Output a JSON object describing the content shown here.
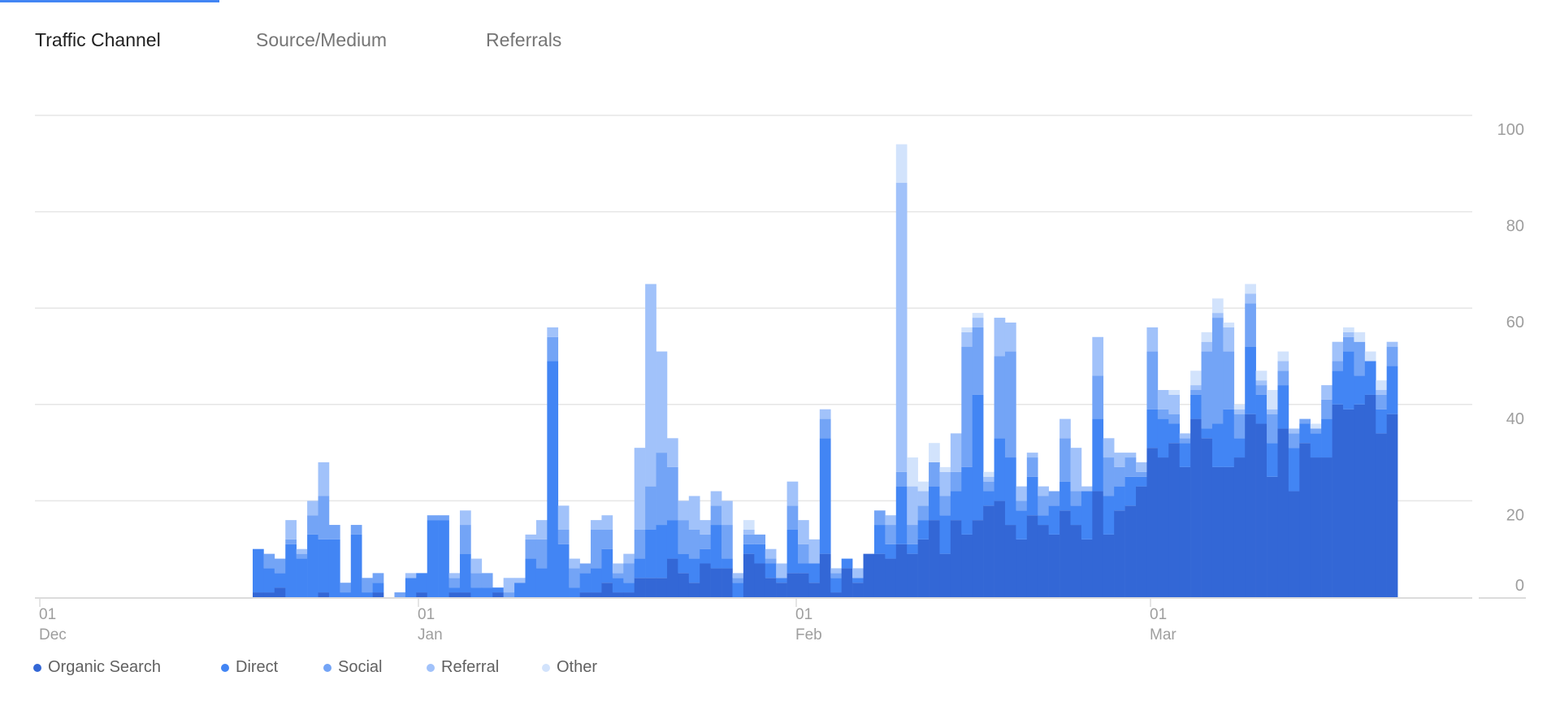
{
  "tabs": [
    {
      "label": "Traffic Channel",
      "active": true
    },
    {
      "label": "Source/Medium",
      "active": false
    },
    {
      "label": "Referrals",
      "active": false
    }
  ],
  "chart_data": {
    "type": "bar",
    "stacked": true,
    "title": "",
    "xlabel": "",
    "ylabel": "",
    "ylim": [
      0,
      100
    ],
    "yticks": [
      "0",
      "20",
      "40",
      "60",
      "80",
      "100"
    ],
    "xticks": [
      {
        "day": "01",
        "month": "Dec"
      },
      {
        "day": "01",
        "month": "Jan"
      },
      {
        "day": "01",
        "month": "Feb"
      },
      {
        "day": "01",
        "month": "Mar"
      }
    ],
    "grid": true,
    "legend_position": "bottom-left",
    "series": [
      {
        "name": "Organic Search",
        "color": "#3367d6",
        "values": [
          1,
          1,
          2,
          0,
          0,
          0,
          1,
          0,
          0,
          0,
          0,
          1,
          0,
          0,
          0,
          1,
          0,
          0,
          1,
          1,
          0,
          0,
          1,
          0,
          0,
          0,
          0,
          0,
          0,
          0,
          1,
          1,
          3,
          1,
          1,
          4,
          4,
          4,
          8,
          5,
          3,
          7,
          6,
          6,
          0,
          9,
          7,
          4,
          3,
          5,
          5,
          3,
          9,
          1,
          6,
          3,
          9,
          9,
          8,
          11,
          9,
          12,
          16,
          9,
          16,
          13,
          16,
          19,
          20,
          15,
          12,
          17,
          15,
          13,
          18,
          15,
          12,
          22,
          13,
          18,
          19,
          23,
          31,
          29,
          32,
          27,
          37,
          33,
          27,
          27,
          29,
          38,
          36,
          25,
          35,
          22,
          32,
          29,
          29,
          40,
          39,
          40,
          42,
          34,
          38
        ]
      },
      {
        "name": "Direct",
        "color": "#4285f4",
        "values": [
          9,
          5,
          3,
          11,
          8,
          13,
          11,
          12,
          1,
          13,
          1,
          2,
          0,
          0,
          4,
          4,
          16,
          16,
          1,
          8,
          2,
          2,
          1,
          0,
          3,
          8,
          6,
          49,
          11,
          2,
          4,
          5,
          7,
          3,
          2,
          4,
          10,
          11,
          8,
          4,
          5,
          3,
          9,
          2,
          3,
          2,
          4,
          3,
          1,
          9,
          2,
          4,
          24,
          3,
          2,
          1,
          0,
          6,
          3,
          12,
          2,
          4,
          7,
          8,
          6,
          14,
          26,
          3,
          13,
          14,
          6,
          8,
          2,
          6,
          6,
          4,
          10,
          15,
          8,
          5,
          6,
          2,
          8,
          8,
          4,
          5,
          5,
          2,
          9,
          12,
          4,
          14,
          6,
          7,
          9,
          9,
          4,
          5,
          8,
          7,
          12,
          6,
          7,
          5,
          10
        ]
      },
      {
        "name": "Social",
        "color": "#73a4f6",
        "values": [
          0,
          3,
          3,
          1,
          1,
          4,
          9,
          3,
          2,
          2,
          3,
          2,
          0,
          1,
          0,
          0,
          1,
          1,
          2,
          6,
          3,
          3,
          0,
          1,
          0,
          4,
          6,
          5,
          3,
          4,
          2,
          8,
          4,
          1,
          4,
          6,
          9,
          15,
          11,
          7,
          6,
          3,
          4,
          7,
          1,
          2,
          2,
          1,
          0,
          5,
          4,
          0,
          4,
          1,
          0,
          0,
          0,
          3,
          4,
          3,
          4,
          3,
          5,
          4,
          4,
          25,
          14,
          2,
          17,
          22,
          2,
          4,
          4,
          3,
          9,
          3,
          0,
          9,
          8,
          4,
          4,
          1,
          12,
          2,
          2,
          1,
          1,
          16,
          22,
          12,
          5,
          9,
          2,
          6,
          3,
          3,
          1,
          1,
          4,
          2,
          3,
          7,
          0,
          3,
          4
        ]
      },
      {
        "name": "Referral",
        "color": "#a1c2fa",
        "values": [
          0,
          0,
          0,
          4,
          1,
          3,
          7,
          0,
          0,
          0,
          0,
          0,
          0,
          0,
          1,
          0,
          0,
          0,
          1,
          3,
          3,
          0,
          0,
          3,
          1,
          1,
          4,
          2,
          5,
          2,
          0,
          2,
          3,
          2,
          2,
          17,
          42,
          21,
          6,
          4,
          7,
          3,
          3,
          5,
          1,
          1,
          0,
          2,
          3,
          5,
          5,
          5,
          2,
          1,
          0,
          2,
          0,
          0,
          2,
          60,
          8,
          3,
          0,
          5,
          8,
          3,
          2,
          1,
          8,
          6,
          3,
          1,
          2,
          0,
          4,
          9,
          1,
          8,
          4,
          3,
          1,
          2,
          5,
          4,
          4,
          1,
          1,
          2,
          1,
          5,
          1,
          2,
          1,
          1,
          2,
          1,
          0,
          0,
          3,
          4,
          1,
          0,
          0,
          1,
          1
        ]
      },
      {
        "name": "Other",
        "color": "#d2e3fc",
        "values": [
          0,
          0,
          0,
          0,
          0,
          0,
          0,
          0,
          0,
          0,
          0,
          0,
          0,
          0,
          0,
          0,
          0,
          0,
          0,
          0,
          0,
          0,
          0,
          0,
          0,
          0,
          0,
          0,
          0,
          0,
          0,
          0,
          0,
          0,
          0,
          0,
          0,
          0,
          0,
          0,
          0,
          0,
          0,
          0,
          0,
          2,
          0,
          0,
          0,
          0,
          0,
          0,
          0,
          0,
          0,
          0,
          0,
          0,
          0,
          8,
          6,
          2,
          4,
          1,
          0,
          1,
          1,
          1,
          0,
          0,
          0,
          0,
          0,
          0,
          0,
          0,
          0,
          0,
          0,
          0,
          0,
          0,
          0,
          0,
          1,
          0,
          3,
          2,
          3,
          1,
          1,
          2,
          2,
          4,
          2,
          0,
          0,
          1,
          0,
          0,
          1,
          2,
          2,
          2,
          0
        ]
      }
    ]
  }
}
